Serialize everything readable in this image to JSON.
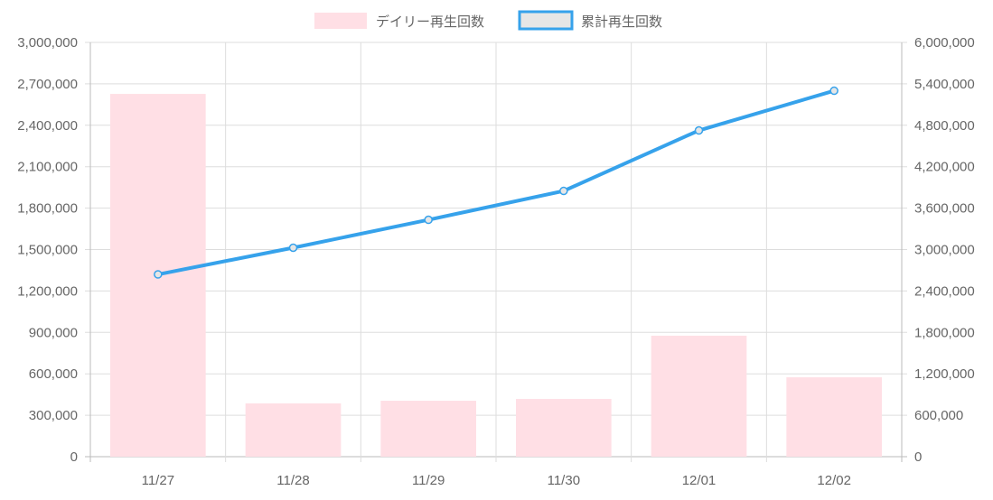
{
  "chart_data": {
    "type": "bar",
    "categories": [
      "11/27",
      "11/28",
      "11/29",
      "11/30",
      "12/01",
      "12/02"
    ],
    "series": [
      {
        "name": "デイリー再生回数",
        "type": "bar",
        "axis": "left",
        "color": "#ffdfe5",
        "values": [
          2627000,
          386000,
          405000,
          418000,
          876000,
          575000
        ]
      },
      {
        "name": "累計再生回数",
        "type": "line",
        "axis": "right",
        "color": "#36a2eb",
        "values": [
          2640000,
          3026000,
          3431000,
          3849000,
          4725000,
          5300000
        ]
      }
    ],
    "y_left": {
      "min": 0,
      "max": 3000000,
      "ticks": [
        "0",
        "300,000",
        "600,000",
        "900,000",
        "1,200,000",
        "1,500,000",
        "1,800,000",
        "2,100,000",
        "2,400,000",
        "2,700,000",
        "3,000,000"
      ]
    },
    "y_right": {
      "min": 0,
      "max": 6000000,
      "ticks": [
        "0",
        "600,000",
        "1,200,000",
        "1,800,000",
        "2,400,000",
        "3,000,000",
        "3,600,000",
        "4,200,000",
        "4,800,000",
        "5,400,000",
        "6,000,000"
      ]
    },
    "legend_position": "top",
    "grid": true
  }
}
